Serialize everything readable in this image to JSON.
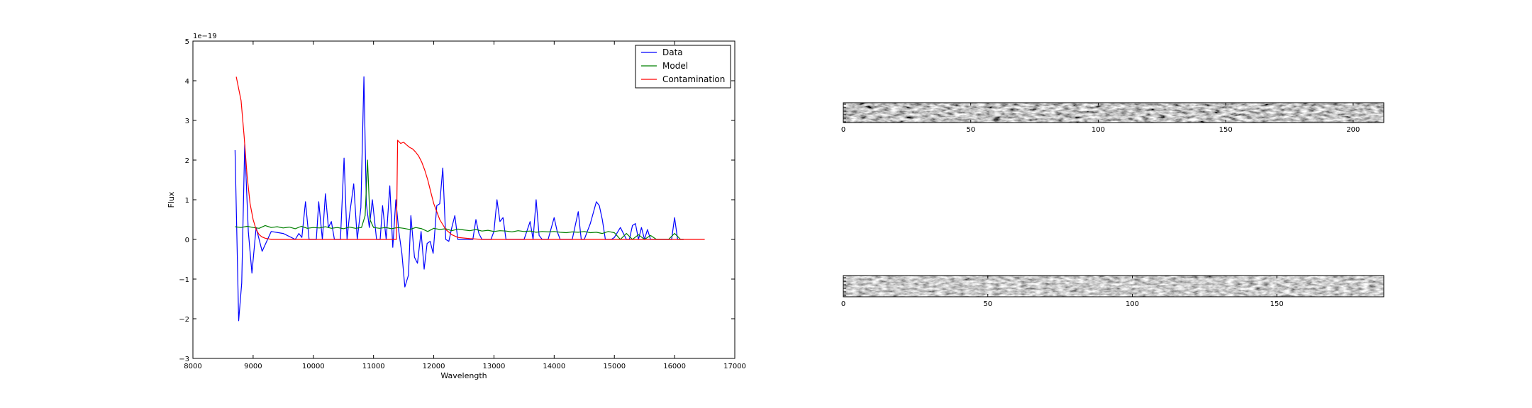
{
  "chart_data": [
    {
      "type": "line",
      "title": "",
      "xlabel": "Wavelength",
      "ylabel": "Flux",
      "offset_text": "1e−19",
      "xlim": [
        8000,
        17000
      ],
      "ylim": [
        -3,
        5
      ],
      "xticks": [
        8000,
        9000,
        10000,
        11000,
        12000,
        13000,
        14000,
        15000,
        16000,
        17000
      ],
      "yticks": [
        -3,
        -2,
        -1,
        0,
        1,
        2,
        3,
        4,
        5
      ],
      "ytick_labels": [
        "−3",
        "−2",
        "−1",
        "0",
        "1",
        "2",
        "3",
        "4",
        "5"
      ],
      "grid": false,
      "legend_position": "top-right",
      "series": [
        {
          "name": "Data",
          "color": "#0000ff",
          "x": [
            8700,
            8760,
            8810,
            8860,
            8920,
            8980,
            9050,
            9150,
            9300,
            9500,
            9700,
            9760,
            9810,
            9870,
            9930,
            9990,
            10050,
            10090,
            10150,
            10200,
            10250,
            10300,
            10350,
            10400,
            10450,
            10510,
            10560,
            10600,
            10670,
            10730,
            10790,
            10840,
            10880,
            10930,
            10980,
            11050,
            11110,
            11150,
            11210,
            11270,
            11320,
            11370,
            11420,
            11470,
            11520,
            11580,
            11620,
            11680,
            11730,
            11790,
            11840,
            11890,
            11940,
            11990,
            12050,
            12100,
            12150,
            12200,
            12250,
            12300,
            12350,
            12400,
            12450,
            12500,
            12550,
            12600,
            12650,
            12700,
            12750,
            12800,
            12850,
            12900,
            12950,
            13000,
            13050,
            13100,
            13150,
            13200,
            13250,
            13300,
            13400,
            13500,
            13600,
            13650,
            13700,
            13750,
            13800,
            13850,
            13900,
            14000,
            14050,
            14100,
            14150,
            14200,
            14300,
            14400,
            14450,
            14500,
            14550,
            14600,
            14700,
            14750,
            14800,
            14850,
            14900,
            14950,
            15000,
            15100,
            15200,
            15250,
            15300,
            15350,
            15400,
            15450,
            15500,
            15550,
            15600,
            15700,
            15800,
            15900,
            15950,
            16000,
            16050,
            16100,
            16150
          ],
          "y": [
            2.25,
            -2.05,
            -1.1,
            2.4,
            0.2,
            -0.85,
            0.3,
            -0.3,
            0.2,
            0.15,
            0.0,
            0.15,
            0.05,
            0.95,
            0.0,
            0.0,
            0.0,
            0.95,
            0.0,
            1.15,
            0.3,
            0.45,
            0.0,
            0.0,
            0.0,
            2.05,
            0.0,
            0.6,
            1.4,
            0.0,
            0.8,
            4.1,
            0.9,
            0.3,
            1.0,
            0.0,
            0.0,
            0.85,
            0.0,
            1.35,
            -0.2,
            1.0,
            0.2,
            -0.35,
            -1.2,
            -0.9,
            0.6,
            -0.45,
            -0.6,
            0.2,
            -0.75,
            -0.1,
            -0.05,
            -0.35,
            0.85,
            0.9,
            1.8,
            0.0,
            -0.05,
            0.3,
            0.6,
            0.0,
            0.0,
            0.0,
            0.0,
            0.0,
            0.0,
            0.5,
            0.15,
            0.0,
            0.0,
            0.0,
            0.0,
            0.2,
            1.0,
            0.45,
            0.55,
            0.0,
            0.0,
            0.0,
            0.0,
            0.0,
            0.45,
            0.0,
            1.0,
            0.1,
            0.0,
            0.0,
            0.0,
            0.55,
            0.2,
            0.0,
            0.0,
            0.0,
            0.0,
            0.7,
            0.0,
            0.0,
            0.2,
            0.4,
            0.95,
            0.85,
            0.5,
            0.0,
            0.0,
            0.0,
            0.05,
            0.3,
            0.0,
            0.0,
            0.35,
            0.4,
            0.0,
            0.3,
            0.0,
            0.25,
            0.0,
            0.0,
            0.0,
            0.0,
            0.0,
            0.55,
            0.0,
            0.0,
            0.0
          ]
        },
        {
          "name": "Model",
          "color": "#008000",
          "x": [
            8700,
            8800,
            8900,
            9000,
            9100,
            9200,
            9300,
            9400,
            9500,
            9600,
            9700,
            9800,
            9900,
            10000,
            10100,
            10200,
            10300,
            10400,
            10500,
            10600,
            10700,
            10800,
            10860,
            10900,
            10940,
            11000,
            11100,
            11200,
            11300,
            11400,
            11500,
            11600,
            11700,
            11800,
            11900,
            12000,
            12100,
            12200,
            12300,
            12400,
            12500,
            12600,
            12700,
            12800,
            12900,
            13000,
            13100,
            13200,
            13300,
            13400,
            13500,
            13600,
            13700,
            13800,
            13900,
            14000,
            14100,
            14200,
            14300,
            14400,
            14500,
            14600,
            14700,
            14800,
            14900,
            15000,
            15100,
            15200,
            15300,
            15400,
            15500,
            15600,
            15700,
            15800,
            15900,
            16000,
            16100,
            16150
          ],
          "y": [
            0.32,
            0.3,
            0.33,
            0.3,
            0.28,
            0.35,
            0.3,
            0.32,
            0.29,
            0.31,
            0.27,
            0.33,
            0.28,
            0.3,
            0.29,
            0.32,
            0.28,
            0.3,
            0.27,
            0.31,
            0.28,
            0.3,
            0.6,
            2.0,
            0.5,
            0.3,
            0.28,
            0.3,
            0.27,
            0.3,
            0.28,
            0.25,
            0.3,
            0.27,
            0.2,
            0.28,
            0.25,
            0.27,
            0.22,
            0.26,
            0.24,
            0.22,
            0.25,
            0.21,
            0.23,
            0.2,
            0.22,
            0.21,
            0.19,
            0.22,
            0.2,
            0.21,
            0.18,
            0.2,
            0.19,
            0.2,
            0.18,
            0.17,
            0.19,
            0.18,
            0.2,
            0.17,
            0.18,
            0.15,
            0.2,
            0.17,
            0.0,
            0.15,
            0.0,
            0.12,
            0.0,
            0.1,
            0.0,
            0.0,
            0.0,
            0.15,
            0.0,
            0.0
          ]
        },
        {
          "name": "Contamination",
          "color": "#ff0000",
          "x": [
            8720,
            8800,
            8850,
            8900,
            8950,
            9000,
            9050,
            9100,
            9150,
            9200,
            9300,
            9400,
            9600,
            10000,
            10500,
            11000,
            11300,
            11380,
            11400,
            11450,
            11500,
            11550,
            11600,
            11650,
            11700,
            11750,
            11800,
            11850,
            11900,
            11950,
            12000,
            12100,
            12200,
            12300,
            12400,
            12600,
            12800,
            13200,
            14000,
            15000,
            16000,
            16500
          ],
          "y": [
            4.1,
            3.5,
            2.6,
            1.6,
            0.9,
            0.5,
            0.25,
            0.12,
            0.06,
            0.03,
            0.0,
            0.0,
            0.0,
            0.0,
            0.0,
            0.0,
            0.0,
            0.0,
            2.5,
            2.42,
            2.45,
            2.38,
            2.32,
            2.28,
            2.2,
            2.1,
            1.95,
            1.75,
            1.5,
            1.2,
            0.9,
            0.5,
            0.25,
            0.12,
            0.05,
            0.02,
            0.0,
            0.0,
            0.0,
            0.0,
            0.0,
            0.0
          ]
        }
      ]
    },
    {
      "type": "heatmap",
      "title": "",
      "xlim": [
        0,
        212
      ],
      "xticks": [
        0,
        50,
        100,
        150,
        200
      ],
      "colormap": "gray"
    },
    {
      "type": "heatmap",
      "title": "",
      "xlim": [
        0,
        187
      ],
      "xticks": [
        0,
        50,
        100,
        150
      ],
      "colormap": "gray"
    }
  ]
}
